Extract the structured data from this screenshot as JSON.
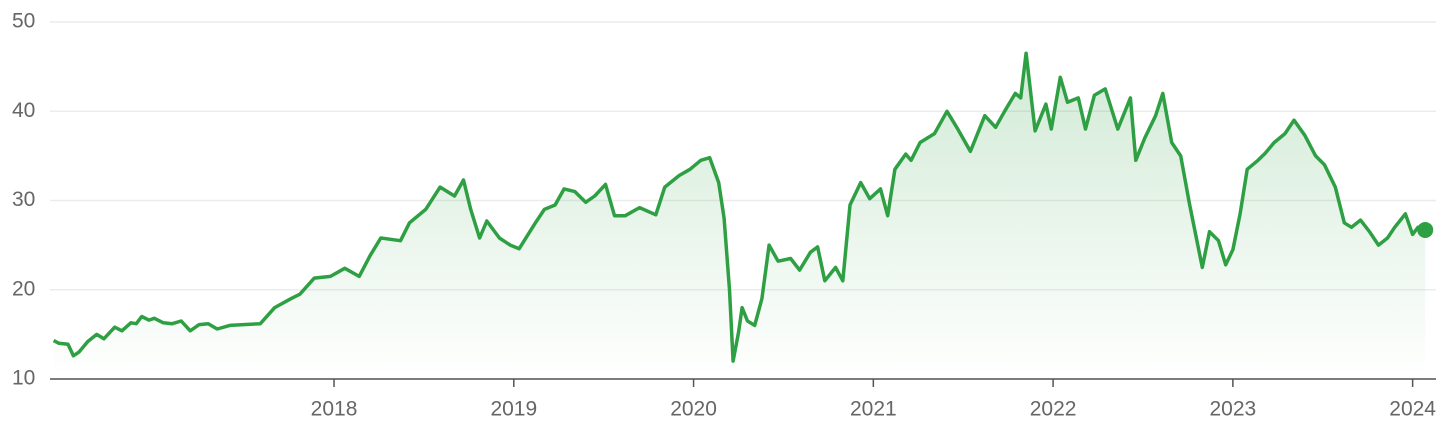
{
  "chart_data": {
    "type": "line",
    "xlim": [
      2016.42,
      2024.13
    ],
    "xticks": [
      2018,
      2019,
      2020,
      2021,
      2022,
      2023,
      2024
    ],
    "ylim": [
      10,
      50
    ],
    "yticks": [
      10,
      20,
      30,
      40,
      50
    ],
    "grid": true,
    "series": [
      {
        "color": "#2ea043",
        "x": [
          2016.44,
          2016.47,
          2016.52,
          2016.55,
          2016.58,
          2016.63,
          2016.68,
          2016.72,
          2016.78,
          2016.82,
          2016.87,
          2016.9,
          2016.93,
          2016.97,
          2017.0,
          2017.05,
          2017.1,
          2017.15,
          2017.2,
          2017.25,
          2017.3,
          2017.35,
          2017.42,
          2017.59,
          2017.67,
          2017.76,
          2017.81,
          2017.89,
          2017.98,
          2018.06,
          2018.14,
          2018.2,
          2018.26,
          2018.37,
          2018.42,
          2018.51,
          2018.59,
          2018.67,
          2018.72,
          2018.76,
          2018.81,
          2018.85,
          2018.92,
          2018.98,
          2019.03,
          2019.12,
          2019.17,
          2019.23,
          2019.28,
          2019.34,
          2019.4,
          2019.45,
          2019.51,
          2019.56,
          2019.62,
          2019.7,
          2019.79,
          2019.84,
          2019.92,
          2019.98,
          2020.04,
          2020.09,
          2020.14,
          2020.17,
          2020.2,
          2020.22,
          2020.25,
          2020.27,
          2020.3,
          2020.34,
          2020.38,
          2020.42,
          2020.47,
          2020.54,
          2020.59,
          2020.65,
          2020.69,
          2020.73,
          2020.79,
          2020.83,
          2020.87,
          2020.93,
          2020.98,
          2021.04,
          2021.08,
          2021.12,
          2021.18,
          2021.21,
          2021.26,
          2021.34,
          2021.41,
          2021.47,
          2021.54,
          2021.62,
          2021.68,
          2021.73,
          2021.79,
          2021.82,
          2021.85,
          2021.9,
          2021.96,
          2021.99,
          2022.04,
          2022.08,
          2022.14,
          2022.18,
          2022.23,
          2022.29,
          2022.36,
          2022.43,
          2022.46,
          2022.51,
          2022.57,
          2022.61,
          2022.66,
          2022.71,
          2022.76,
          2022.83,
          2022.87,
          2022.92,
          2022.96,
          2023.0,
          2023.04,
          2023.08,
          2023.14,
          2023.18,
          2023.23,
          2023.29,
          2023.34,
          2023.4,
          2023.46,
          2023.51,
          2023.57,
          2023.62,
          2023.66,
          2023.71,
          2023.76,
          2023.81,
          2023.86,
          2023.9,
          2023.96,
          2024.0,
          2024.03,
          2024.07
        ],
        "values": [
          14.3,
          14.0,
          13.9,
          12.6,
          13.0,
          14.2,
          15.0,
          14.5,
          15.8,
          15.4,
          16.3,
          16.2,
          17.0,
          16.6,
          16.8,
          16.3,
          16.2,
          16.5,
          15.4,
          16.1,
          16.2,
          15.6,
          16.0,
          16.2,
          18.0,
          19.0,
          19.5,
          21.3,
          21.5,
          22.4,
          21.5,
          23.8,
          25.8,
          25.5,
          27.5,
          29.0,
          31.5,
          30.5,
          32.3,
          29.0,
          25.8,
          27.7,
          25.8,
          25.0,
          24.6,
          27.5,
          29.0,
          29.5,
          31.3,
          31.0,
          29.8,
          30.5,
          31.8,
          28.3,
          28.3,
          29.2,
          28.4,
          31.5,
          32.8,
          33.5,
          34.5,
          34.8,
          32.0,
          28.0,
          20.0,
          12.0,
          15.2,
          18.0,
          16.5,
          16.0,
          19.0,
          25.0,
          23.2,
          23.5,
          22.2,
          24.2,
          24.8,
          21.0,
          22.5,
          21.0,
          29.5,
          32.0,
          30.2,
          31.3,
          28.3,
          33.5,
          35.2,
          34.5,
          36.5,
          37.5,
          40.0,
          38.0,
          35.5,
          39.5,
          38.2,
          40.0,
          42.0,
          41.5,
          46.5,
          37.8,
          40.8,
          38.0,
          43.8,
          41.0,
          41.5,
          38.0,
          41.8,
          42.5,
          38.0,
          41.5,
          34.5,
          37.0,
          39.5,
          42.0,
          36.5,
          35.0,
          29.5,
          22.5,
          26.5,
          25.5,
          22.8,
          24.5,
          28.5,
          33.5,
          34.5,
          35.3,
          36.5,
          37.5,
          39.0,
          37.3,
          35.0,
          34.0,
          31.5,
          27.5,
          27.0,
          27.8,
          26.5,
          25.0,
          25.8,
          27.0,
          28.5,
          26.2,
          27.0,
          26.7
        ]
      }
    ]
  }
}
